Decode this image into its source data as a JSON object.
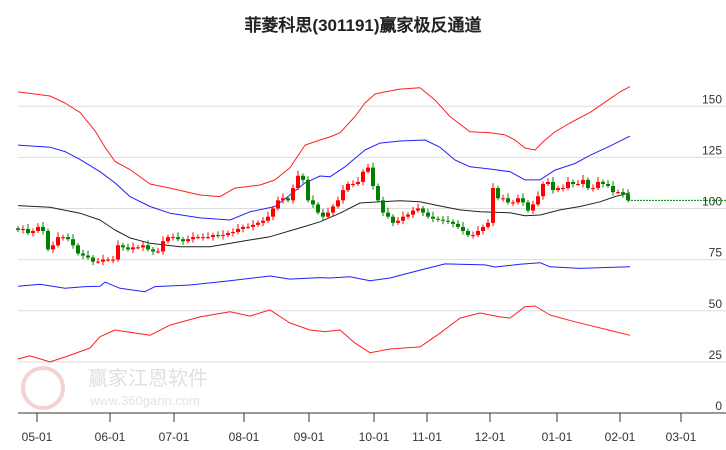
{
  "chart_data": {
    "type": "candlestick-channel",
    "title": "菲菱科思(301191)赢家极反通道",
    "ylim": [
      0,
      160
    ],
    "yticks": [
      0,
      25,
      50,
      75,
      100,
      125,
      150
    ],
    "ytick_labels": [
      "0",
      "25",
      "50",
      "75",
      "100",
      "125",
      "150"
    ],
    "x_range": [
      0,
      141.6
    ],
    "xticks": [
      {
        "label": "05-01",
        "t": 3.8
      },
      {
        "label": "06-01",
        "t": 18.4
      },
      {
        "label": "07-01",
        "t": 31.2
      },
      {
        "label": "08-01",
        "t": 45.2
      },
      {
        "label": "09-01",
        "t": 58.2
      },
      {
        "label": "10-01",
        "t": 71.2
      },
      {
        "label": "11-01",
        "t": 81.8
      },
      {
        "label": "12-01",
        "t": 94.4
      },
      {
        "label": "01-01",
        "t": 107.8
      },
      {
        "label": "02-01",
        "t": 120.4
      },
      {
        "label": "03-01",
        "t": 132.6
      }
    ],
    "grid": true,
    "last_price": 104,
    "closes": [
      89.5,
      90,
      88,
      89,
      91,
      89,
      80,
      82,
      86,
      86,
      85,
      82,
      78,
      77,
      76,
      74,
      74,
      75,
      75,
      75,
      82,
      81,
      80,
      81,
      81,
      82,
      80,
      79,
      79,
      84,
      86,
      86,
      85,
      84,
      85,
      86,
      86,
      86,
      86,
      87,
      86.5,
      87,
      88,
      88.5,
      90,
      91,
      91,
      92,
      93,
      94,
      96,
      100,
      104,
      105,
      104,
      110,
      116,
      114,
      104,
      102,
      98,
      96,
      98,
      101,
      104,
      109,
      112,
      112,
      113,
      118,
      120,
      111,
      104,
      98,
      96,
      93,
      94,
      96,
      97,
      99,
      100,
      98,
      96,
      95,
      94.5,
      94,
      93.5,
      92.5,
      91,
      89,
      87,
      87,
      89,
      91,
      93,
      110,
      105,
      105,
      103,
      103,
      105,
      103,
      99,
      102,
      106,
      112,
      113,
      109,
      110,
      110,
      113,
      112,
      112,
      114,
      110,
      110,
      113,
      112,
      111,
      108,
      108,
      107,
      104
    ],
    "series": [
      {
        "name": "upper-outer",
        "color": "#ff2020",
        "points": [
          [
            0,
            157
          ],
          [
            6.4,
            155
          ],
          [
            9.4,
            151.6
          ],
          [
            12.4,
            147
          ],
          [
            15.4,
            138
          ],
          [
            17.4,
            130
          ],
          [
            19.4,
            123
          ],
          [
            22.4,
            119
          ],
          [
            26.4,
            112
          ],
          [
            30.4,
            110
          ],
          [
            36.4,
            106.6
          ],
          [
            40.4,
            105.8
          ],
          [
            43.4,
            110
          ],
          [
            48.4,
            111.5
          ],
          [
            51.4,
            114
          ],
          [
            54.4,
            120
          ],
          [
            57.4,
            131
          ],
          [
            60.4,
            133.5
          ],
          [
            62.4,
            135
          ],
          [
            64.4,
            137
          ],
          [
            67.4,
            145
          ],
          [
            69.4,
            151.6
          ],
          [
            71.4,
            156
          ],
          [
            73.4,
            157
          ],
          [
            76.4,
            158.4
          ],
          [
            80.4,
            159
          ],
          [
            83.4,
            153
          ],
          [
            86.4,
            145
          ],
          [
            90.4,
            137.5
          ],
          [
            94.4,
            137
          ],
          [
            97.4,
            136
          ],
          [
            99.4,
            133.5
          ],
          [
            101.4,
            129.6
          ],
          [
            103.4,
            128.6
          ],
          [
            105.4,
            133.5
          ],
          [
            107.4,
            137.5
          ],
          [
            110.4,
            141.8
          ],
          [
            114.4,
            147
          ],
          [
            117.4,
            152
          ],
          [
            120.4,
            157
          ],
          [
            122.4,
            159.6
          ]
        ]
      },
      {
        "name": "upper-inner",
        "color": "#2020ff",
        "points": [
          [
            0,
            131
          ],
          [
            6.4,
            130
          ],
          [
            9.4,
            127.8
          ],
          [
            12.4,
            124
          ],
          [
            16.4,
            118
          ],
          [
            19.4,
            112.5
          ],
          [
            22.4,
            105.8
          ],
          [
            26.4,
            101
          ],
          [
            30.4,
            97.7
          ],
          [
            36.4,
            95.4
          ],
          [
            42.4,
            94.4
          ],
          [
            46.4,
            98.4
          ],
          [
            51.4,
            101
          ],
          [
            54.4,
            106.6
          ],
          [
            57.4,
            112.5
          ],
          [
            60.4,
            115.9
          ],
          [
            62.4,
            115.5
          ],
          [
            65.4,
            120.4
          ],
          [
            69.4,
            128.6
          ],
          [
            72.4,
            132
          ],
          [
            76.4,
            133
          ],
          [
            81.4,
            133.5
          ],
          [
            84.4,
            130
          ],
          [
            87.4,
            123.7
          ],
          [
            90.4,
            120.4
          ],
          [
            94.4,
            119.3
          ],
          [
            98.4,
            118
          ],
          [
            101.4,
            114
          ],
          [
            104.4,
            114
          ],
          [
            107.4,
            118.8
          ],
          [
            111.4,
            122
          ],
          [
            114.4,
            126
          ],
          [
            118.4,
            130.5
          ],
          [
            122.4,
            135.4
          ]
        ]
      },
      {
        "name": "middle",
        "color": "#222222",
        "points": [
          [
            0,
            101.4
          ],
          [
            6.4,
            100.6
          ],
          [
            12.4,
            97.7
          ],
          [
            16.4,
            94.4
          ],
          [
            19.4,
            89.5
          ],
          [
            22.4,
            85.6
          ],
          [
            26.4,
            83
          ],
          [
            32.4,
            81.3
          ],
          [
            38.4,
            81.3
          ],
          [
            44.4,
            83.8
          ],
          [
            50.4,
            86.2
          ],
          [
            56.4,
            90.5
          ],
          [
            60.4,
            93.5
          ],
          [
            64.4,
            97.7
          ],
          [
            68.4,
            102.7
          ],
          [
            72.4,
            103.3
          ],
          [
            76.4,
            103.8
          ],
          [
            80.4,
            103.3
          ],
          [
            84.4,
            101.2
          ],
          [
            88.4,
            99.3
          ],
          [
            92.4,
            98.4
          ],
          [
            98.4,
            97.9
          ],
          [
            101.4,
            96.5
          ],
          [
            104.4,
            96.8
          ],
          [
            108.4,
            99.3
          ],
          [
            112.4,
            101
          ],
          [
            116.4,
            103.3
          ],
          [
            119.4,
            105.8
          ],
          [
            122.4,
            107.7
          ]
        ]
      },
      {
        "name": "lower-inner",
        "color": "#2020ff",
        "points": [
          [
            0,
            62
          ],
          [
            4.4,
            63
          ],
          [
            9.4,
            61
          ],
          [
            13.4,
            61.8
          ],
          [
            16.4,
            62
          ],
          [
            17.4,
            64
          ],
          [
            20.4,
            61
          ],
          [
            25.4,
            59.3
          ],
          [
            27.4,
            61.8
          ],
          [
            34.4,
            62.6
          ],
          [
            42.4,
            64.7
          ],
          [
            50.4,
            67
          ],
          [
            54.4,
            65.5
          ],
          [
            60.4,
            66.2
          ],
          [
            62.4,
            66
          ],
          [
            66.4,
            66.6
          ],
          [
            70.4,
            64.7
          ],
          [
            74.4,
            66
          ],
          [
            80.4,
            69.9
          ],
          [
            85.4,
            72.9
          ],
          [
            93.4,
            72.4
          ],
          [
            95.4,
            71.4
          ],
          [
            100.4,
            72.7
          ],
          [
            104.4,
            73.5
          ],
          [
            106.4,
            71.5
          ],
          [
            112.4,
            70.7
          ],
          [
            118.4,
            71.2
          ],
          [
            122.4,
            71.5
          ]
        ]
      },
      {
        "name": "lower-outer",
        "color": "#ff2020",
        "points": [
          [
            0,
            26.4
          ],
          [
            2.4,
            27.9
          ],
          [
            6.4,
            25
          ],
          [
            9.4,
            27.4
          ],
          [
            14.4,
            31.8
          ],
          [
            16.4,
            37.3
          ],
          [
            19.4,
            40.6
          ],
          [
            26.4,
            38
          ],
          [
            30.4,
            43
          ],
          [
            36.4,
            47
          ],
          [
            42.4,
            49.5
          ],
          [
            46.4,
            47.4
          ],
          [
            50.4,
            50.4
          ],
          [
            54.4,
            44
          ],
          [
            58.4,
            40.6
          ],
          [
            61.4,
            39.8
          ],
          [
            64.4,
            40.6
          ],
          [
            67.4,
            34.2
          ],
          [
            70.4,
            29.5
          ],
          [
            74.4,
            31.3
          ],
          [
            80.4,
            32.3
          ],
          [
            84.4,
            39
          ],
          [
            88.4,
            46.4
          ],
          [
            92.4,
            48.9
          ],
          [
            96.4,
            47
          ],
          [
            98.4,
            46.4
          ],
          [
            101.4,
            52
          ],
          [
            103.4,
            52.3
          ],
          [
            106.4,
            47.9
          ],
          [
            111.4,
            44.6
          ],
          [
            115.4,
            42.2
          ],
          [
            119.4,
            39.8
          ],
          [
            122.4,
            38
          ]
        ]
      }
    ],
    "colors": {
      "up": "#ff0000",
      "down": "#008000",
      "grid": "#dddddd",
      "axis": "#333333"
    }
  },
  "watermark": {
    "brand": "赢家江恩软件",
    "url": "www.360gann.com",
    "seal": "江赢恩家"
  }
}
